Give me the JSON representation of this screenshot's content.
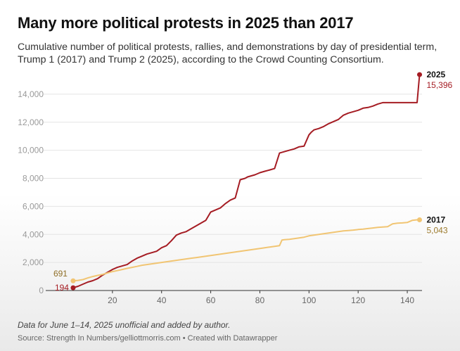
{
  "title": "Many more political protests in 2025 than 2017",
  "subtitle": "Cumulative number of political protests, rallies, and demonstrations by day of presidential term, Trump 1 (2017) and Trump 2 (2025), according to the Crowd Counting Consortium.",
  "note": "Data for June 1–14, 2025 unofficial and added by author.",
  "source": "Source: Strength In Numbers/gelliottmorris.com • Created with Datawrapper",
  "chart_data": {
    "type": "line",
    "title": "Many more political protests in 2025 than 2017",
    "xlabel": "",
    "ylabel": "",
    "xlim": [
      0,
      146
    ],
    "ylim": [
      0,
      15500
    ],
    "x_ticks": [
      20,
      40,
      60,
      80,
      100,
      120,
      140
    ],
    "y_ticks": [
      0,
      2000,
      4000,
      6000,
      8000,
      10000,
      12000,
      14000
    ],
    "x_tick_labels": [
      "20",
      "40",
      "60",
      "80",
      "100",
      "120",
      "140"
    ],
    "y_tick_labels": [
      "0",
      "2,000",
      "4,000",
      "6,000",
      "8,000",
      "10,000",
      "12,000",
      "14,000"
    ],
    "grid": true,
    "series": [
      {
        "name": "2025",
        "color": "#a51c23",
        "start_label": "194",
        "end_label": "15,396",
        "x": [
          4,
          6,
          8,
          10,
          12,
          14,
          16,
          18,
          20,
          22,
          24,
          26,
          28,
          30,
          32,
          34,
          36,
          38,
          40,
          42,
          44,
          46,
          48,
          50,
          52,
          54,
          56,
          58,
          60,
          62,
          64,
          66,
          68,
          70,
          72,
          74,
          75,
          76,
          78,
          80,
          82,
          84,
          86,
          88,
          89,
          90,
          92,
          94,
          96,
          98,
          100,
          101,
          102,
          104,
          106,
          108,
          110,
          112,
          114,
          116,
          117,
          118,
          120,
          122,
          124,
          126,
          128,
          130,
          132,
          134,
          136,
          138,
          140,
          142,
          144,
          145
        ],
        "values": [
          194,
          300,
          450,
          600,
          700,
          850,
          1100,
          1300,
          1500,
          1650,
          1750,
          1850,
          2100,
          2300,
          2450,
          2600,
          2700,
          2800,
          3050,
          3200,
          3550,
          3950,
          4100,
          4200,
          4400,
          4600,
          4800,
          5000,
          5600,
          5750,
          5900,
          6200,
          6450,
          6600,
          7900,
          8000,
          8100,
          8150,
          8250,
          8400,
          8500,
          8600,
          8700,
          9800,
          9850,
          9900,
          10000,
          10100,
          10250,
          10300,
          11100,
          11300,
          11450,
          11550,
          11700,
          11900,
          12050,
          12200,
          12500,
          12650,
          12700,
          12750,
          12850,
          13000,
          13050,
          13150,
          13300,
          13400,
          13400,
          13400,
          13400,
          13400,
          13400,
          13400,
          13400,
          15396
        ]
      },
      {
        "name": "2017",
        "color": "#f1c573",
        "start_label": "691",
        "end_label": "5,043",
        "x": [
          4,
          6,
          8,
          10,
          12,
          14,
          16,
          18,
          20,
          22,
          24,
          26,
          28,
          30,
          32,
          34,
          36,
          38,
          40,
          42,
          44,
          46,
          48,
          50,
          52,
          54,
          56,
          58,
          60,
          62,
          64,
          66,
          68,
          70,
          72,
          74,
          76,
          78,
          80,
          82,
          84,
          86,
          88,
          89,
          90,
          92,
          94,
          96,
          98,
          100,
          102,
          104,
          106,
          108,
          110,
          112,
          114,
          116,
          118,
          120,
          122,
          124,
          126,
          128,
          130,
          132,
          134,
          136,
          138,
          140,
          142,
          144,
          145
        ],
        "values": [
          691,
          720,
          780,
          900,
          1000,
          1080,
          1150,
          1250,
          1350,
          1420,
          1500,
          1580,
          1650,
          1720,
          1800,
          1850,
          1900,
          1950,
          2000,
          2050,
          2100,
          2150,
          2200,
          2250,
          2300,
          2350,
          2400,
          2450,
          2500,
          2550,
          2600,
          2650,
          2700,
          2750,
          2800,
          2850,
          2900,
          2950,
          3000,
          3050,
          3100,
          3150,
          3200,
          3600,
          3620,
          3650,
          3700,
          3750,
          3800,
          3900,
          3950,
          4000,
          4050,
          4100,
          4150,
          4200,
          4250,
          4280,
          4310,
          4350,
          4380,
          4420,
          4460,
          4500,
          4530,
          4550,
          4750,
          4800,
          4820,
          4850,
          5000,
          5043,
          5043
        ]
      }
    ]
  }
}
